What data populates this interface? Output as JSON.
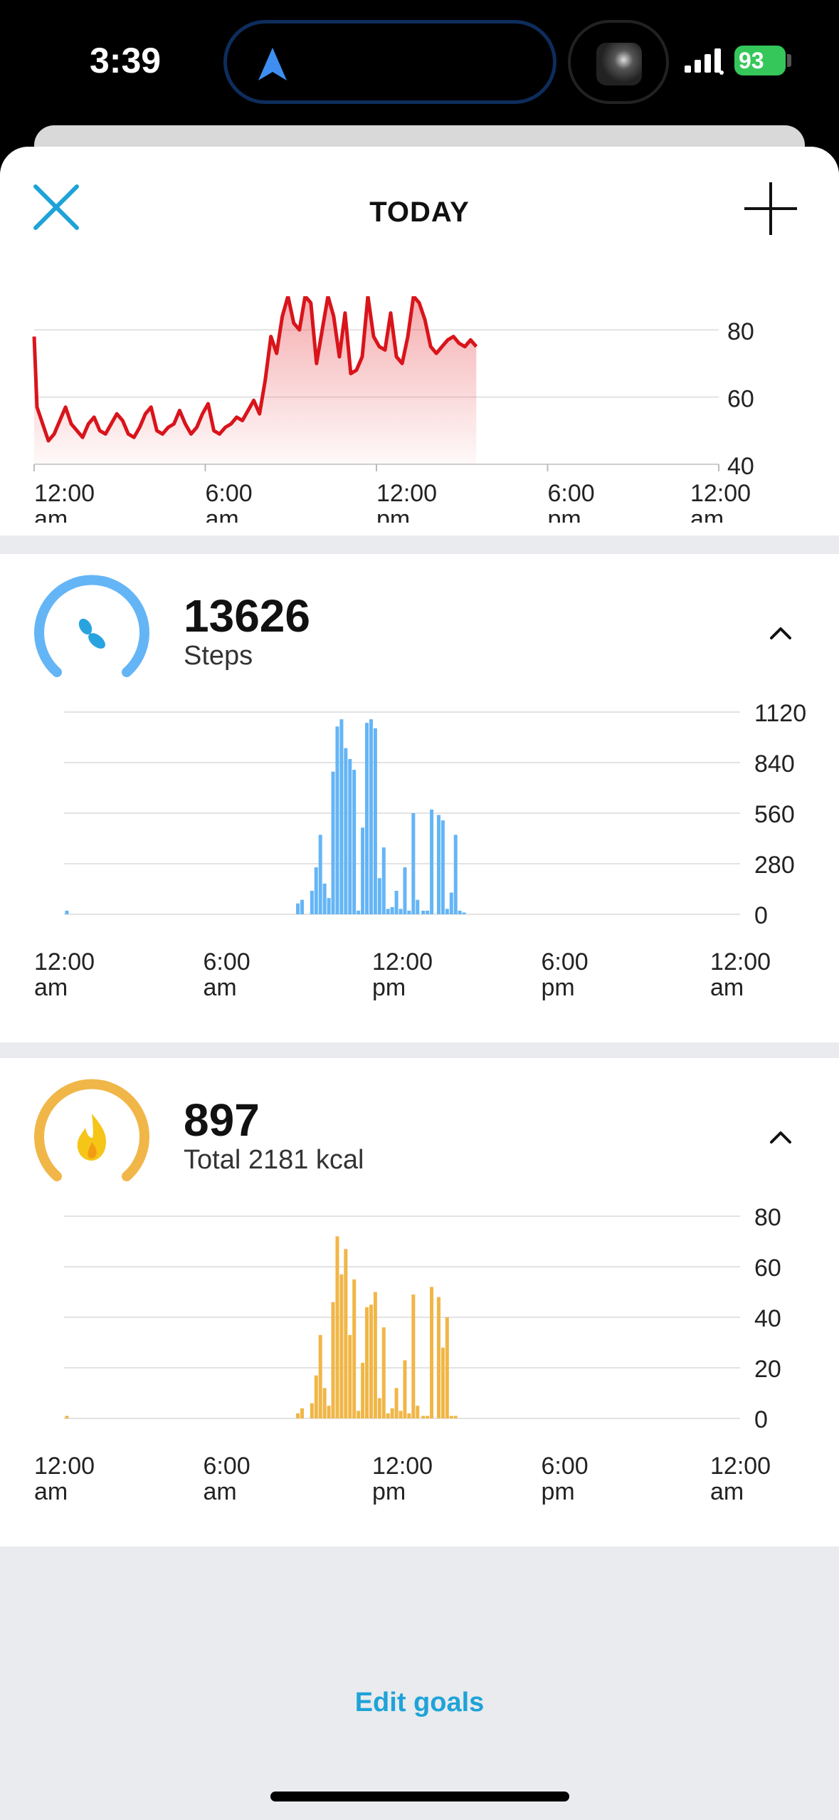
{
  "status_bar": {
    "time": "3:39",
    "battery": "93"
  },
  "header": {
    "title": "TODAY"
  },
  "heart_chart": {
    "y_ticks": [
      "80",
      "60",
      "40"
    ],
    "x_ticks": [
      [
        "12:00",
        "am"
      ],
      [
        "6:00",
        "am"
      ],
      [
        "12:00",
        "pm"
      ],
      [
        "6:00",
        "pm"
      ],
      [
        "12:00",
        "am"
      ]
    ],
    "color": "#d9141b"
  },
  "steps": {
    "value": "13626",
    "label": "Steps",
    "color": "#64b5f6",
    "y_ticks": [
      "1120",
      "840",
      "560",
      "280",
      "0"
    ],
    "x_ticks": [
      [
        "12:00",
        "am"
      ],
      [
        "6:00",
        "am"
      ],
      [
        "12:00",
        "pm"
      ],
      [
        "6:00",
        "pm"
      ],
      [
        "12:00",
        "am"
      ]
    ]
  },
  "calories": {
    "value": "897",
    "label": "Total 2181 kcal",
    "color": "#f0b647",
    "y_ticks": [
      "80",
      "60",
      "40",
      "20",
      "0"
    ],
    "x_ticks": [
      [
        "12:00",
        "am"
      ],
      [
        "6:00",
        "am"
      ],
      [
        "12:00",
        "pm"
      ],
      [
        "6:00",
        "pm"
      ],
      [
        "12:00",
        "am"
      ]
    ]
  },
  "chart_data": [
    {
      "type": "area",
      "ylim": [
        40,
        90
      ],
      "x_range_hours": [
        0,
        24
      ],
      "x_hours": [
        0,
        0.1,
        0.3,
        0.5,
        0.7,
        0.9,
        1.1,
        1.3,
        1.5,
        1.7,
        1.9,
        2.1,
        2.3,
        2.5,
        2.7,
        2.9,
        3.1,
        3.3,
        3.5,
        3.7,
        3.9,
        4.1,
        4.3,
        4.5,
        4.7,
        4.9,
        5.1,
        5.3,
        5.5,
        5.7,
        5.9,
        6.1,
        6.3,
        6.5,
        6.7,
        6.9,
        7.1,
        7.3,
        7.5,
        7.7,
        7.9,
        8.1,
        8.3,
        8.5,
        8.7,
        8.9,
        9.1,
        9.3,
        9.5,
        9.7,
        9.9,
        10.1,
        10.3,
        10.5,
        10.7,
        10.9,
        11.1,
        11.3,
        11.5,
        11.7,
        11.9,
        12.1,
        12.3,
        12.5,
        12.7,
        12.9,
        13.1,
        13.3,
        13.5,
        13.7,
        13.9,
        14.1,
        14.3,
        14.5,
        14.7,
        14.9,
        15.1,
        15.3,
        15.5
      ],
      "values": [
        78,
        57,
        52,
        47,
        49,
        53,
        57,
        52,
        50,
        48,
        52,
        54,
        50,
        49,
        52,
        55,
        53,
        49,
        48,
        51,
        55,
        57,
        50,
        49,
        51,
        52,
        56,
        52,
        49,
        51,
        55,
        58,
        50,
        49,
        51,
        52,
        54,
        53,
        56,
        59,
        55,
        65,
        78,
        73,
        84,
        90,
        82,
        80,
        90,
        88,
        70,
        80,
        90,
        84,
        72,
        85,
        67,
        68,
        72,
        90,
        78,
        75,
        74,
        85,
        72,
        70,
        78,
        90,
        88,
        83,
        75,
        73,
        75,
        77,
        78,
        76,
        75,
        77,
        75
      ]
    },
    {
      "type": "bar",
      "name": "Steps",
      "ylim": [
        0,
        1120
      ],
      "x_range_hours": [
        0,
        24
      ],
      "x_hours": [
        0.1,
        8.3,
        8.45,
        8.8,
        8.95,
        9.1,
        9.25,
        9.4,
        9.55,
        9.7,
        9.85,
        10.0,
        10.15,
        10.3,
        10.45,
        10.6,
        10.75,
        10.9,
        11.05,
        11.2,
        11.35,
        11.5,
        11.65,
        11.8,
        11.95,
        12.1,
        12.25,
        12.4,
        12.55,
        12.75,
        12.9,
        13.05,
        13.3,
        13.45,
        13.6,
        13.75,
        13.9,
        14.05,
        14.2
      ],
      "values": [
        20,
        60,
        80,
        130,
        260,
        440,
        170,
        90,
        790,
        1040,
        1080,
        920,
        860,
        800,
        20,
        480,
        1060,
        1080,
        1030,
        200,
        370,
        30,
        40,
        130,
        30,
        260,
        20,
        560,
        80,
        20,
        20,
        580,
        550,
        520,
        30,
        120,
        440,
        20,
        10
      ]
    },
    {
      "type": "bar",
      "name": "Calories",
      "ylim": [
        0,
        80
      ],
      "x_range_hours": [
        0,
        24
      ],
      "x_hours": [
        0.1,
        8.3,
        8.45,
        8.8,
        8.95,
        9.1,
        9.25,
        9.4,
        9.55,
        9.7,
        9.85,
        10.0,
        10.15,
        10.3,
        10.45,
        10.6,
        10.75,
        10.9,
        11.05,
        11.2,
        11.35,
        11.5,
        11.65,
        11.8,
        11.95,
        12.1,
        12.25,
        12.4,
        12.55,
        12.75,
        12.9,
        13.05,
        13.3,
        13.45,
        13.6,
        13.75,
        13.9,
        14.05,
        14.2
      ],
      "values": [
        1,
        2,
        4,
        6,
        17,
        33,
        12,
        5,
        46,
        72,
        57,
        67,
        33,
        55,
        3,
        22,
        44,
        45,
        50,
        8,
        36,
        2,
        4,
        12,
        3,
        23,
        2,
        49,
        5,
        1,
        1,
        52,
        48,
        28,
        40,
        1,
        1,
        0,
        0
      ]
    }
  ]
}
